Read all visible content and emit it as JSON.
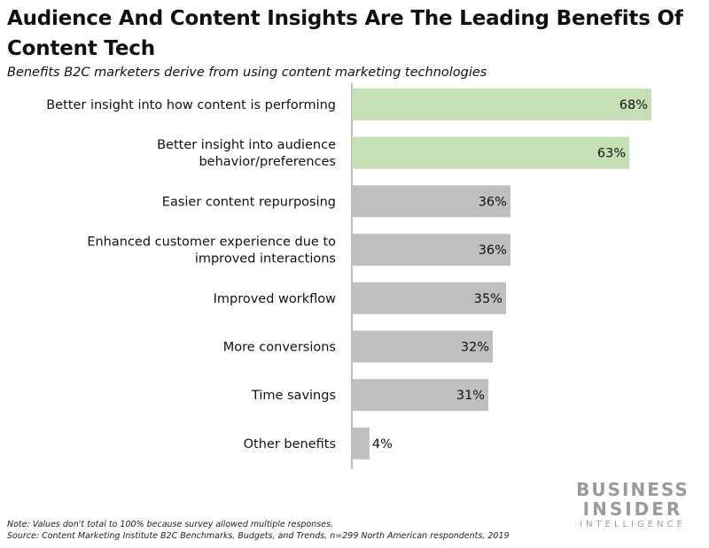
{
  "chart_data": {
    "type": "bar",
    "orientation": "horizontal",
    "title": "Audience And Content Insights Are The Leading Benefits Of Content Tech",
    "subtitle": "Benefits B2C marketers derive from using content marketing technologies",
    "categories": [
      [
        "Better insight into how content is performing"
      ],
      [
        "Better insight into audience",
        "behavior/preferences"
      ],
      [
        "Easier content repurposing"
      ],
      [
        "Enhanced customer experience due to",
        "improved interactions"
      ],
      [
        "Improved workflow"
      ],
      [
        "More conversions"
      ],
      [
        "Time savings"
      ],
      [
        "Other benefits"
      ]
    ],
    "values": [
      68,
      63,
      36,
      36,
      35,
      32,
      31,
      4
    ],
    "value_labels": [
      "68%",
      "63%",
      "36%",
      "36%",
      "35%",
      "32%",
      "31%",
      "4%"
    ],
    "highlighted": [
      true,
      true,
      false,
      false,
      false,
      false,
      false,
      false
    ],
    "xlim": [
      0,
      68
    ],
    "xlabel": "",
    "ylabel": "",
    "grid": false,
    "legend": "none"
  },
  "colors": {
    "highlight": "#c5e0b4",
    "default": "#bfbfbf",
    "axis": "#a6a6a6"
  },
  "footer": {
    "note": "Note: Values don't total to 100% because survey allowed multiple responses.",
    "source": "Source: Content Marketing Institute B2C Benchmarks, Budgets, and Trends, n=299 North American respondents, 2019"
  },
  "brand": {
    "line1": "BUSINESS",
    "line2": "INSIDER",
    "line3": "INTELLIGENCE"
  }
}
